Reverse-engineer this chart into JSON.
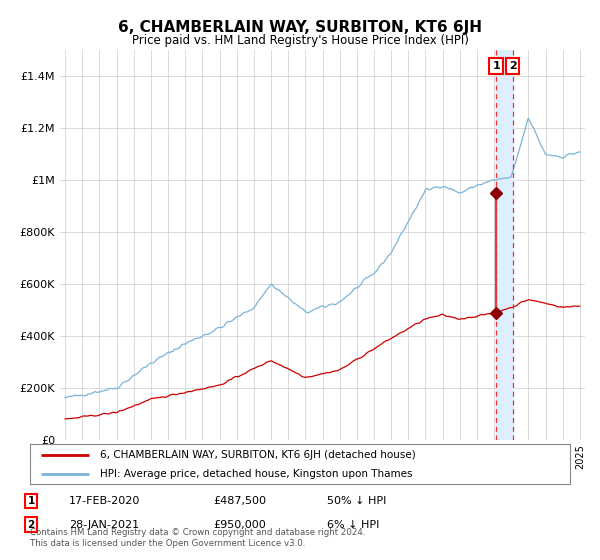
{
  "title": "6, CHAMBERLAIN WAY, SURBITON, KT6 6JH",
  "subtitle": "Price paid vs. HM Land Registry's House Price Index (HPI)",
  "legend_line1": "6, CHAMBERLAIN WAY, SURBITON, KT6 6JH (detached house)",
  "legend_line2": "HPI: Average price, detached house, Kingston upon Thames",
  "transaction1_price": 487500,
  "transaction2_price": 950000,
  "transaction1_date_str": "17-FEB-2020",
  "transaction2_date_str": "28-JAN-2021",
  "transaction1_pct": "50% ↓ HPI",
  "transaction2_pct": "6% ↓ HPI",
  "transaction1_price_str": "£487,500",
  "transaction2_price_str": "£950,000",
  "hpi_color": "#7ab4d8",
  "price_color": "#cc0000",
  "marker_color": "#8b0000",
  "dashed_line_color": "#ee3333",
  "highlight_color": "#ddeeff",
  "footer": "Contains HM Land Registry data © Crown copyright and database right 2024.\nThis data is licensed under the Open Government Licence v3.0.",
  "ylim": [
    0,
    1500000
  ],
  "yticks": [
    0,
    200000,
    400000,
    600000,
    800000,
    1000000,
    1200000,
    1400000
  ],
  "ytick_labels": [
    "£0",
    "£200K",
    "£400K",
    "£600K",
    "£800K",
    "£1M",
    "£1.2M",
    "£1.4M"
  ],
  "x_start_year": 1995,
  "x_end_year": 2025,
  "transaction1_x": 2020.12,
  "transaction2_x": 2021.08
}
